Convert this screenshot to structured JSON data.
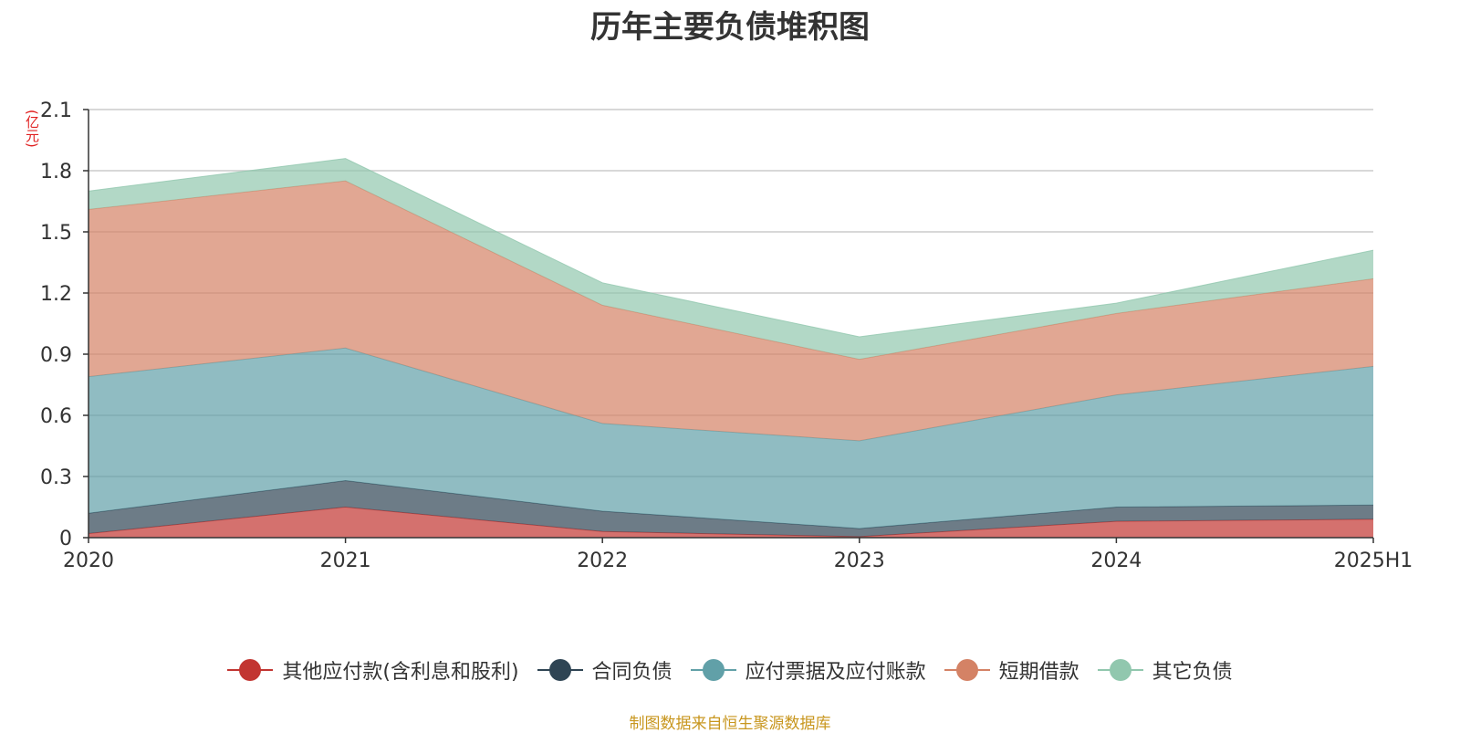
{
  "chart_data": {
    "type": "area",
    "title": "历年主要负债堆积图",
    "unit_label": "(亿元)",
    "categories": [
      "2020",
      "2021",
      "2022",
      "2023",
      "2024",
      "2025H1"
    ],
    "y_ticks": [
      "0",
      "0.3",
      "0.6",
      "0.9",
      "1.2",
      "1.5",
      "1.8",
      "2.1"
    ],
    "ylim": [
      0,
      2.1
    ],
    "stacked": true,
    "grid": true,
    "legend_position": "bottom",
    "series": [
      {
        "name": "其他应付款(含利息和股利)",
        "values": [
          0.02,
          0.15,
          0.03,
          0.005,
          0.08,
          0.09
        ],
        "color": "#c23531",
        "marker_color": "#c23531"
      },
      {
        "name": "合同负债",
        "values": [
          0.1,
          0.13,
          0.1,
          0.04,
          0.07,
          0.07
        ],
        "color": "#2f4554",
        "marker_color": "#2f4554"
      },
      {
        "name": "应付票据及应付账款",
        "values": [
          0.67,
          0.65,
          0.43,
          0.43,
          0.55,
          0.68
        ],
        "color": "#61a0a8",
        "marker_color": "#61a0a8"
      },
      {
        "name": "短期借款",
        "values": [
          0.82,
          0.82,
          0.58,
          0.4,
          0.4,
          0.43
        ],
        "color": "#d48265",
        "marker_color": "#d48265"
      },
      {
        "name": "其它负债",
        "values": [
          0.09,
          0.11,
          0.11,
          0.11,
          0.05,
          0.14
        ],
        "color": "#91c7ae",
        "marker_color": "#91c7ae"
      }
    ],
    "source_note": "制图数据来自恒生聚源数据库"
  }
}
